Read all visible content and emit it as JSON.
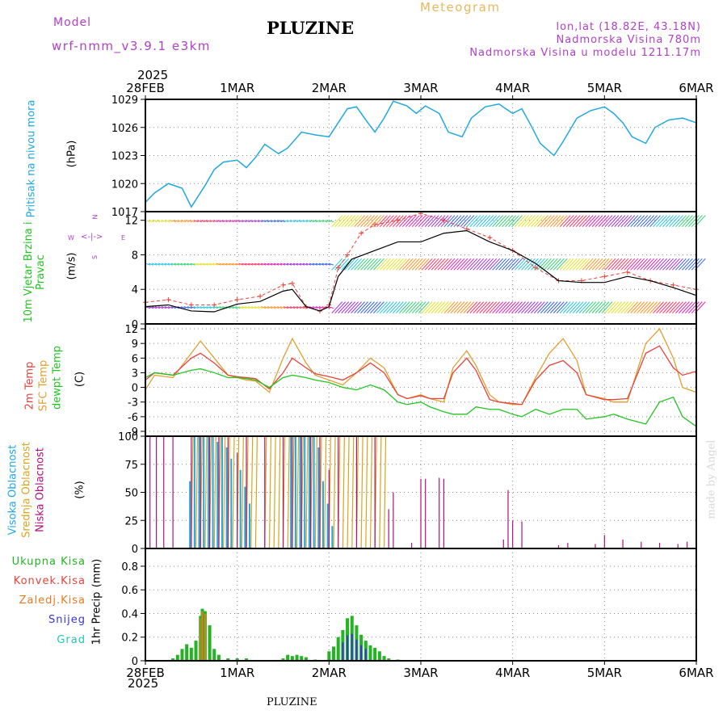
{
  "header": {
    "model_label": "Model",
    "model_name": "wrf-nmm_v3.9.1  e3km",
    "station_title": "PLUZINE",
    "meteogram_label": "Meteogram",
    "lonlat": "lon,lat (18.82E, 43.18N)",
    "altitude": "Nadmorska Visina 780m",
    "model_altitude": "Nadmorska Visina u modelu 1211.17m",
    "year_top": "2025",
    "year_bottom": "2025",
    "footer_station": "PLUZINE",
    "watermark": "made by Angel"
  },
  "colors": {
    "pressure": "#1fa8e0",
    "temp2m": "#e8423a",
    "sfc": "#e0a030",
    "dewpt": "#22c422",
    "low_cloud": "#b0127a",
    "mid_cloud": "#d9a520",
    "high_cloud": "#1fa8e0",
    "wind_speed": "#000000",
    "gust": "#e8423a",
    "total_precip": "#22b422",
    "conv_precip": "#e8423a",
    "strat_precip": "#e87a20",
    "snow": "#3535d8",
    "hail": "#22c4b4",
    "compass": "#b040c8"
  },
  "chart_data": {
    "type": "line",
    "x_unit": "days from 28FEB 00UTC",
    "x_ticks": [
      {
        "value": 0,
        "label": "28FEB"
      },
      {
        "value": 1,
        "label": "1MAR"
      },
      {
        "value": 2,
        "label": "2MAR"
      },
      {
        "value": 3,
        "label": "3MAR"
      },
      {
        "value": 4,
        "label": "4MAR"
      },
      {
        "value": 5,
        "label": "5MAR"
      },
      {
        "value": 6,
        "label": "6MAR"
      }
    ],
    "panels": [
      {
        "id": "pressure",
        "ylabel": "Pritisak na nivou mora",
        "unit": "(hPa)",
        "ylim": [
          1017,
          1029
        ],
        "yticks": [
          1017,
          1020,
          1023,
          1026,
          1029
        ],
        "series": [
          {
            "name": "MSLP",
            "x": [
              0,
              0.1,
              0.25,
              0.4,
              0.5,
              0.65,
              0.75,
              0.85,
              1,
              1.1,
              1.2,
              1.3,
              1.45,
              1.55,
              1.7,
              1.85,
              2,
              2.1,
              2.2,
              2.3,
              2.4,
              2.5,
              2.6,
              2.7,
              2.85,
              2.95,
              3.05,
              3.2,
              3.3,
              3.45,
              3.55,
              3.7,
              3.85,
              4,
              4.1,
              4.2,
              4.3,
              4.45,
              4.55,
              4.7,
              4.85,
              5,
              5.1,
              5.2,
              5.3,
              5.45,
              5.55,
              5.7,
              5.85,
              6
            ],
            "y": [
              1018,
              1019,
              1020,
              1019.5,
              1017.5,
              1019.8,
              1021.5,
              1022.3,
              1022.5,
              1021.7,
              1022.8,
              1024.2,
              1023.2,
              1023.8,
              1025.5,
              1025.2,
              1025,
              1026.5,
              1028,
              1028.2,
              1026.8,
              1025.5,
              1027,
              1028.8,
              1028.3,
              1027.5,
              1028.3,
              1027.5,
              1025.5,
              1025,
              1027,
              1028.2,
              1028.5,
              1027.5,
              1028,
              1026.2,
              1024.3,
              1023,
              1024.5,
              1027,
              1027.8,
              1028.2,
              1027.5,
              1026.5,
              1025,
              1024.3,
              1026,
              1026.8,
              1027,
              1026.5
            ]
          }
        ]
      },
      {
        "id": "wind",
        "ylabel": "10m Vjetar Brzina i Pravac",
        "unit": "(m/s)",
        "ylim": [
          0,
          13
        ],
        "yticks": [
          0,
          4,
          8,
          12
        ],
        "compass": {
          "north": "N",
          "west": "W",
          "east": "E",
          "south": "S"
        },
        "series": [
          {
            "name": "wind speed",
            "x": [
              0,
              0.25,
              0.5,
              0.75,
              1,
              1.25,
              1.5,
              1.6,
              1.75,
              1.9,
              2,
              2.1,
              2.25,
              2.5,
              2.75,
              3,
              3.25,
              3.5,
              3.75,
              4,
              4.25,
              4.5,
              4.75,
              5,
              5.25,
              5.5,
              5.75,
              6
            ],
            "y": [
              2,
              2.2,
              1.5,
              1.4,
              2.3,
              2.6,
              3.8,
              4,
              2,
              1.5,
              2,
              5.5,
              7.5,
              8.5,
              9.5,
              9.5,
              10.5,
              10.8,
              9.5,
              8.5,
              7,
              5,
              4.8,
              4.8,
              5.5,
              5,
              4.2,
              3.3
            ]
          },
          {
            "name": "gust",
            "x": [
              0,
              0.25,
              0.5,
              0.75,
              1,
              1.25,
              1.5,
              1.6,
              1.75,
              1.9,
              2,
              2.1,
              2.2,
              2.35,
              2.5,
              2.75,
              3,
              3.25,
              3.5,
              3.75,
              4,
              4.25,
              4.5,
              4.75,
              5,
              5.25,
              5.5,
              5.75,
              6
            ],
            "y": [
              2.5,
              2.8,
              2.2,
              2.2,
              2.8,
              3.2,
              4.5,
              4.7,
              2,
              1.5,
              2.2,
              6.5,
              8,
              10.5,
              11.5,
              12,
              12.8,
              12,
              11,
              10,
              8.5,
              6.5,
              5,
              5,
              5.5,
              6,
              5,
              4.5,
              4
            ]
          }
        ],
        "barb_rows": [
          2,
          7,
          12
        ]
      },
      {
        "id": "temp",
        "ylabels": [
          "2m Temp",
          "SFC Temp",
          "dewpt Temp"
        ],
        "unit": "(C)",
        "ylim": [
          -10,
          13
        ],
        "yticks": [
          -9,
          -6,
          -3,
          0,
          3,
          6,
          9,
          12
        ],
        "series": [
          {
            "name": "2m Temp",
            "x": [
              0,
              0.1,
              0.3,
              0.5,
              0.6,
              0.75,
              0.9,
              1,
              1.1,
              1.2,
              1.35,
              1.5,
              1.6,
              1.75,
              1.85,
              2,
              2.15,
              2.3,
              2.45,
              2.6,
              2.75,
              2.85,
              3,
              3.1,
              3.25,
              3.35,
              3.5,
              3.6,
              3.75,
              3.85,
              4,
              4.1,
              4.25,
              4.4,
              4.55,
              4.7,
              4.8,
              5,
              5.1,
              5.25,
              5.45,
              5.6,
              5.75,
              5.85,
              6
            ],
            "y": [
              1.5,
              3,
              2.5,
              6,
              7,
              5,
              2.5,
              2.2,
              2,
              1.8,
              -0.3,
              3,
              6,
              4,
              2.8,
              2.2,
              1.5,
              3,
              5,
              3,
              -1.5,
              -2.3,
              -1.7,
              -2.3,
              -2.3,
              3,
              6,
              3.5,
              -2.5,
              -3,
              -3.3,
              -3.5,
              1.5,
              4.5,
              5.5,
              3,
              -1.5,
              -2.5,
              -2.5,
              -2.3,
              7,
              8.5,
              4,
              2.5,
              3.3
            ]
          },
          {
            "name": "SFC Temp",
            "x": [
              0,
              0.1,
              0.3,
              0.5,
              0.6,
              0.75,
              0.9,
              1,
              1.1,
              1.2,
              1.35,
              1.5,
              1.6,
              1.75,
              1.85,
              2,
              2.15,
              2.3,
              2.45,
              2.6,
              2.75,
              2.85,
              3,
              3.1,
              3.25,
              3.35,
              3.5,
              3.6,
              3.75,
              3.85,
              4,
              4.1,
              4.25,
              4.4,
              4.55,
              4.7,
              4.8,
              5,
              5.1,
              5.25,
              5.45,
              5.6,
              5.75,
              5.85,
              6
            ],
            "y": [
              -0.5,
              2.5,
              2,
              7,
              9.5,
              6,
              2.5,
              2,
              1.5,
              1.3,
              -1,
              6,
              10,
              5,
              2.5,
              1.5,
              0.5,
              3,
              6,
              4,
              -1.5,
              -2.3,
              -1.5,
              -2.3,
              -3,
              4,
              7.5,
              4.5,
              -1.5,
              -3,
              -3.5,
              -3.5,
              2,
              7,
              10,
              5.5,
              -1.5,
              -2.3,
              -3,
              -3,
              9,
              12,
              6,
              0,
              -1
            ]
          },
          {
            "name": "dewpt Temp",
            "x": [
              0,
              0.1,
              0.3,
              0.5,
              0.6,
              0.75,
              0.9,
              1,
              1.1,
              1.2,
              1.35,
              1.5,
              1.6,
              1.75,
              1.85,
              2,
              2.15,
              2.3,
              2.45,
              2.6,
              2.75,
              2.85,
              3,
              3.1,
              3.25,
              3.35,
              3.5,
              3.6,
              3.75,
              3.85,
              4,
              4.1,
              4.25,
              4.4,
              4.55,
              4.7,
              4.8,
              5,
              5.1,
              5.25,
              5.45,
              5.6,
              5.75,
              5.85,
              6
            ],
            "y": [
              2,
              3,
              2.5,
              3.5,
              3.8,
              3,
              2,
              2,
              1.8,
              1.5,
              0,
              2,
              2.5,
              2,
              1.5,
              1,
              0,
              -0.5,
              0.5,
              -0.5,
              -3,
              -3.5,
              -3,
              -4,
              -5,
              -5.5,
              -5.5,
              -4,
              -4.5,
              -4.5,
              -5.5,
              -6,
              -4.5,
              -5.5,
              -4.5,
              -4.5,
              -6.5,
              -6,
              -5.5,
              -6.5,
              -7.5,
              -3,
              -2,
              -6,
              -8
            ]
          }
        ]
      },
      {
        "id": "cloud",
        "ylabels": [
          "Visoka Oblacnost",
          "Srednja Oblacnost",
          "Niska Oblacnost"
        ],
        "unit": "(%)",
        "ylim": [
          0,
          100
        ],
        "yticks": [
          0,
          25,
          50,
          75,
          100
        ],
        "high": {
          "x": [
            0.45,
            0.5,
            0.55,
            0.6,
            0.65,
            0.7,
            0.75,
            0.8,
            0.85,
            0.9,
            1.0,
            1.05,
            1.1,
            1.55,
            1.6,
            1.65,
            1.7,
            1.75,
            1.8,
            1.85,
            1.9,
            1.95,
            2.0
          ],
          "y": [
            60,
            100,
            100,
            100,
            100,
            100,
            95,
            100,
            90,
            80,
            70,
            55,
            40,
            100,
            100,
            100,
            100,
            100,
            100,
            90,
            60,
            40,
            20
          ]
        },
        "mid": {
          "x": [
            0.5,
            0.55,
            0.6,
            0.65,
            0.7,
            0.75,
            0.8,
            0.85,
            0.9,
            0.95,
            1.0,
            1.05,
            1.1,
            1.15,
            1.2,
            1.3,
            1.35,
            1.4,
            1.45,
            1.5,
            1.55,
            1.6,
            1.65,
            1.7,
            1.75,
            1.8,
            1.85,
            1.9,
            1.95,
            2.0,
            2.05,
            2.1,
            2.15,
            2.2,
            2.25,
            2.3,
            2.35,
            2.4,
            2.45,
            2.5,
            2.55,
            2.6
          ],
          "y": [
            100,
            100,
            100,
            100,
            100,
            100,
            100,
            100,
            100,
            100,
            100,
            100,
            100,
            100,
            100,
            100,
            100,
            100,
            100,
            100,
            100,
            100,
            100,
            100,
            100,
            100,
            100,
            100,
            100,
            100,
            100,
            100,
            100,
            100,
            100,
            100,
            100,
            100,
            100,
            100,
            100,
            100
          ]
        },
        "low": {
          "x": [
            0.05,
            0.12,
            0.2,
            0.3,
            0.5,
            0.6,
            0.7,
            0.8,
            0.9,
            1.0,
            1.1,
            1.3,
            1.5,
            1.6,
            1.7,
            1.8,
            1.9,
            2.0,
            2.1,
            2.3,
            2.5,
            2.65,
            2.7,
            2.9,
            3.0,
            3.05,
            3.2,
            3.25,
            3.9,
            3.95,
            4.0,
            4.1,
            4.5,
            4.6,
            4.9,
            5.0,
            5.2,
            5.4,
            5.6,
            5.8,
            5.9
          ],
          "y": [
            100,
            100,
            100,
            100,
            100,
            100,
            100,
            100,
            100,
            85,
            100,
            100,
            100,
            100,
            100,
            100,
            100,
            70,
            100,
            100,
            100,
            35,
            50,
            5,
            62,
            62,
            63,
            62,
            8,
            52,
            25,
            24,
            3,
            5,
            4,
            12,
            8,
            6,
            5,
            4,
            6
          ]
        }
      },
      {
        "id": "precip",
        "ylabel": "1hr Precip",
        "unit": "(mm)",
        "ylim": [
          0,
          0.95
        ],
        "yticks": [
          0,
          0.2,
          0.4,
          0.6,
          0.8
        ],
        "labels": [
          "Ukupna Kisa",
          "Konvek.Kisa",
          "Zaledj.Kisa",
          "Snijeg",
          "Grad"
        ],
        "bars_x": [
          0.3,
          0.35,
          0.4,
          0.45,
          0.5,
          0.55,
          0.6,
          0.62,
          0.65,
          0.7,
          0.75,
          0.8,
          0.9,
          1.0,
          1.1,
          1.5,
          1.55,
          1.6,
          1.65,
          1.7,
          1.75,
          1.85,
          2.0,
          2.05,
          2.1,
          2.15,
          2.2,
          2.25,
          2.3,
          2.35,
          2.4,
          2.45,
          2.5,
          2.55,
          2.6,
          2.65,
          2.75
        ],
        "bars_y": [
          0.02,
          0.05,
          0.1,
          0.14,
          0.11,
          0.17,
          0.38,
          0.44,
          0.42,
          0.3,
          0.1,
          0.05,
          0.02,
          0.02,
          0.02,
          0.02,
          0.05,
          0.04,
          0.05,
          0.04,
          0.03,
          0.01,
          0.08,
          0.12,
          0.2,
          0.26,
          0.36,
          0.38,
          0.3,
          0.22,
          0.17,
          0.13,
          0.11,
          0.08,
          0.04,
          0.02,
          0.01
        ]
      }
    ]
  }
}
